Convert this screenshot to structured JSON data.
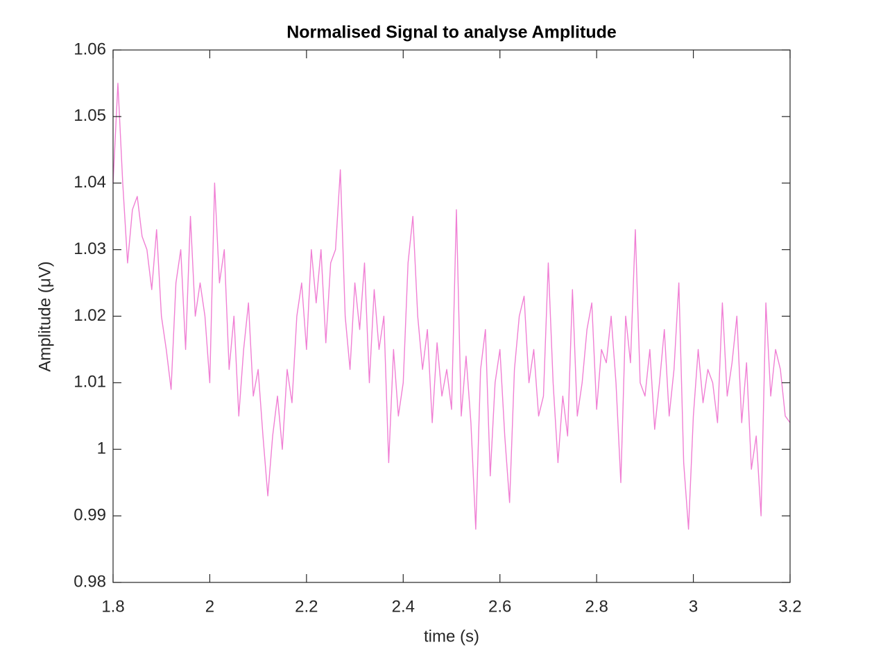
{
  "chart_data": {
    "type": "line",
    "title": "Normalised Signal to analyse Amplitude",
    "x_label": "time (s)",
    "y_label": "Amplitude (μV)",
    "color": "#f07fd4",
    "box": true,
    "xlim": [
      1.8,
      3.2
    ],
    "ylim": [
      0.98,
      1.06
    ],
    "xticks": [
      1.8,
      2,
      2.2,
      2.4,
      2.6,
      2.8,
      3,
      3.2
    ],
    "yticks": [
      0.98,
      0.99,
      1,
      1.01,
      1.02,
      1.03,
      1.04,
      1.05,
      1.06
    ],
    "x": [
      1.8,
      1.81,
      1.82,
      1.83,
      1.84,
      1.85,
      1.86,
      1.87,
      1.88,
      1.89,
      1.9,
      1.91,
      1.92,
      1.93,
      1.94,
      1.95,
      1.96,
      1.97,
      1.98,
      1.99,
      2,
      2.01,
      2.02,
      2.03,
      2.04,
      2.05,
      2.06,
      2.07,
      2.08,
      2.09,
      2.1,
      2.11,
      2.12,
      2.13,
      2.14,
      2.15,
      2.16,
      2.17,
      2.18,
      2.19,
      2.2,
      2.21,
      2.22,
      2.23,
      2.24,
      2.25,
      2.26,
      2.27,
      2.28,
      2.29,
      2.3,
      2.31,
      2.32,
      2.33,
      2.34,
      2.35,
      2.36,
      2.37,
      2.38,
      2.39,
      2.4,
      2.41,
      2.42,
      2.43,
      2.44,
      2.45,
      2.46,
      2.47,
      2.48,
      2.49,
      2.5,
      2.51,
      2.52,
      2.53,
      2.54,
      2.55,
      2.56,
      2.57,
      2.58,
      2.59,
      2.6,
      2.61,
      2.62,
      2.63,
      2.64,
      2.65,
      2.66,
      2.67,
      2.68,
      2.69,
      2.7,
      2.71,
      2.72,
      2.73,
      2.74,
      2.75,
      2.76,
      2.77,
      2.78,
      2.79,
      2.8,
      2.81,
      2.82,
      2.83,
      2.84,
      2.85,
      2.86,
      2.87,
      2.88,
      2.89,
      2.9,
      2.91,
      2.92,
      2.93,
      2.94,
      2.95,
      2.96,
      2.97,
      2.98,
      2.99,
      3,
      3.01,
      3.02,
      3.03,
      3.04,
      3.05,
      3.06,
      3.07,
      3.08,
      3.09,
      3.1,
      3.11,
      3.12,
      3.13,
      3.14,
      3.15,
      3.16,
      3.17,
      3.18,
      3.19,
      3.2
    ],
    "values": [
      1.04,
      1.055,
      1.04,
      1.028,
      1.036,
      1.038,
      1.032,
      1.03,
      1.024,
      1.033,
      1.02,
      1.015,
      1.009,
      1.025,
      1.03,
      1.015,
      1.035,
      1.02,
      1.025,
      1.02,
      1.01,
      1.04,
      1.025,
      1.03,
      1.012,
      1.02,
      1.005,
      1.015,
      1.022,
      1.008,
      1.012,
      1.002,
      0.993,
      1.002,
      1.008,
      1.0,
      1.012,
      1.007,
      1.02,
      1.025,
      1.015,
      1.03,
      1.022,
      1.03,
      1.016,
      1.028,
      1.03,
      1.042,
      1.02,
      1.012,
      1.025,
      1.018,
      1.028,
      1.01,
      1.024,
      1.015,
      1.02,
      0.998,
      1.015,
      1.005,
      1.01,
      1.028,
      1.035,
      1.02,
      1.012,
      1.018,
      1.004,
      1.016,
      1.008,
      1.012,
      1.006,
      1.036,
      1.005,
      1.014,
      1.004,
      0.988,
      1.012,
      1.018,
      0.996,
      1.01,
      1.015,
      1.002,
      0.992,
      1.012,
      1.02,
      1.023,
      1.01,
      1.015,
      1.005,
      1.008,
      1.028,
      1.01,
      0.998,
      1.008,
      1.002,
      1.024,
      1.005,
      1.01,
      1.018,
      1.022,
      1.006,
      1.015,
      1.013,
      1.02,
      1.01,
      0.995,
      1.02,
      1.013,
      1.033,
      1.01,
      1.008,
      1.015,
      1.003,
      1.01,
      1.018,
      1.005,
      1.012,
      1.025,
      0.998,
      0.988,
      1.005,
      1.015,
      1.007,
      1.012,
      1.01,
      1.004,
      1.022,
      1.008,
      1.013,
      1.02,
      1.004,
      1.013,
      0.997,
      1.002,
      0.99,
      1.022,
      1.008,
      1.015,
      1.012,
      1.005,
      1.004
    ]
  }
}
